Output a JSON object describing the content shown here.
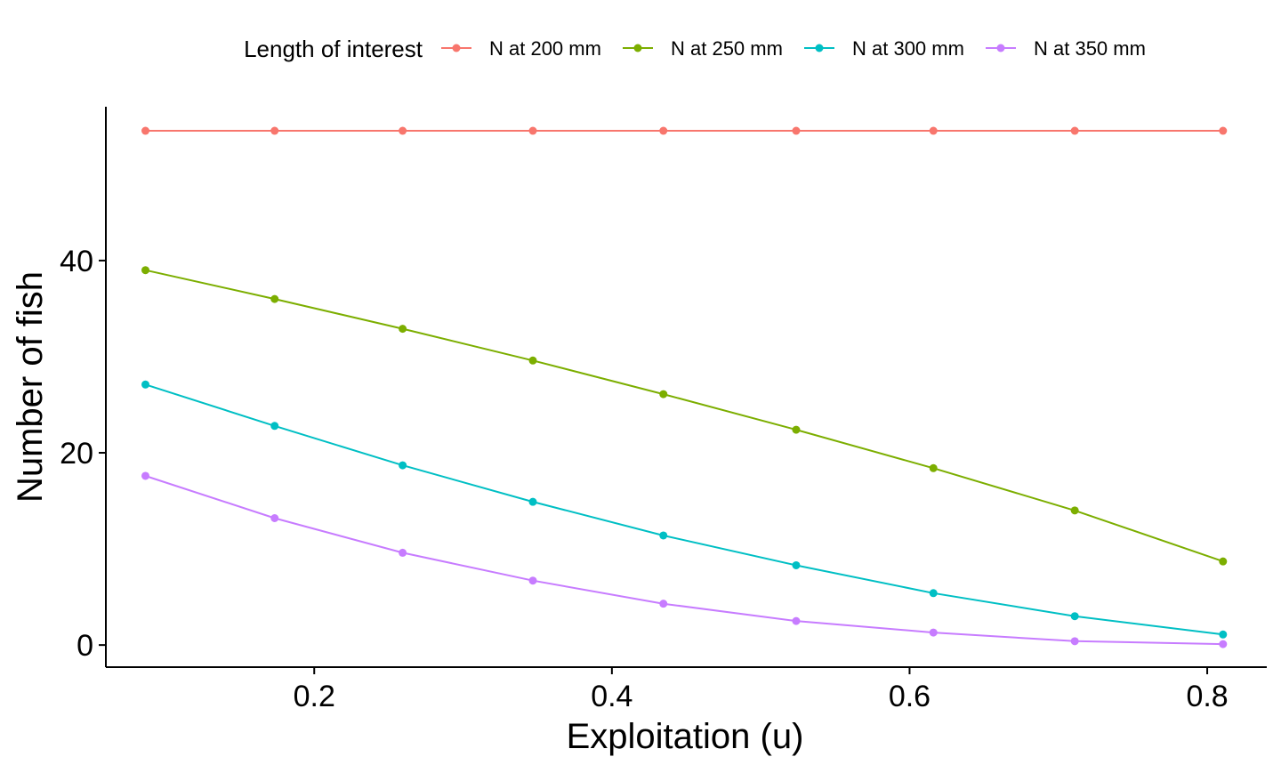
{
  "chart_data": {
    "type": "line",
    "xlabel": "Exploitation (u)",
    "ylabel": "Number of fish",
    "xlim": [
      0.06,
      0.84
    ],
    "ylim": [
      -2.3,
      56
    ],
    "x_ticks": [
      0.2,
      0.4,
      0.6,
      0.8
    ],
    "x_tick_labels": [
      "0.2",
      "0.4",
      "0.6",
      "0.8"
    ],
    "y_ticks": [
      0,
      20,
      40
    ],
    "y_tick_labels": [
      "0",
      "20",
      "40"
    ],
    "grid": false,
    "legend": {
      "title": "Length of interest",
      "position": "top"
    },
    "x": [
      0.0866,
      0.1734,
      0.2594,
      0.3469,
      0.4346,
      0.5238,
      0.616,
      0.711,
      0.8106
    ],
    "series": [
      {
        "name": "N at 200 mm",
        "color": "#F8766D",
        "values": [
          53.5,
          53.5,
          53.5,
          53.5,
          53.5,
          53.5,
          53.5,
          53.5,
          53.5
        ]
      },
      {
        "name": "N at 250 mm",
        "color": "#7CAE00",
        "values": [
          39.0,
          36.0,
          32.9,
          29.6,
          26.1,
          22.4,
          18.4,
          14.0,
          8.7
        ]
      },
      {
        "name": "N at 300 mm",
        "color": "#00BFC4",
        "values": [
          27.1,
          22.8,
          18.7,
          14.9,
          11.4,
          8.3,
          5.4,
          3.0,
          1.1
        ]
      },
      {
        "name": "N at 350 mm",
        "color": "#C77CFF",
        "values": [
          17.6,
          13.2,
          9.6,
          6.7,
          4.3,
          2.5,
          1.3,
          0.4,
          0.1
        ]
      }
    ]
  }
}
